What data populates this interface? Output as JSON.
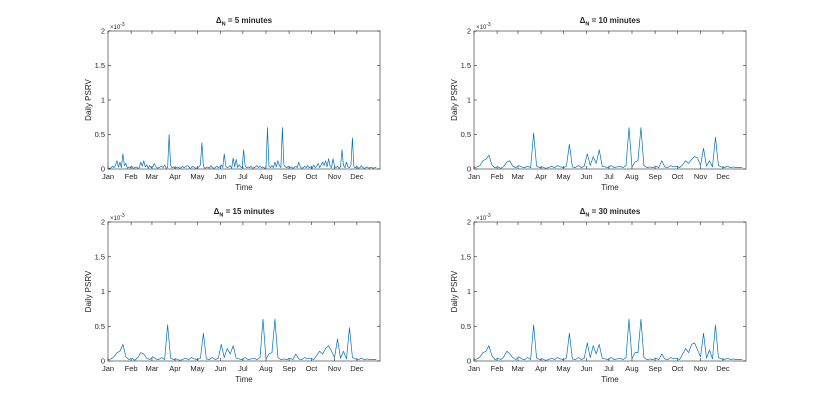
{
  "figure": {
    "y_exponent_label": "×10",
    "y_exponent_power": "-3"
  },
  "chart_data": [
    {
      "type": "line",
      "title": "Δ",
      "title_subscript": "N",
      "title_suffix": " = 5 minutes",
      "xlabel": "Time",
      "ylabel": "Daily PSRV",
      "x_tick_labels": [
        "Jan",
        "Feb",
        "Mar",
        "Apr",
        "May",
        "Jun",
        "Jul",
        "Aug",
        "Sep",
        "Oct",
        "Nov",
        "Dec"
      ],
      "x_tick_days": [
        0,
        31,
        59,
        90,
        120,
        151,
        181,
        212,
        243,
        273,
        304,
        334
      ],
      "xlim": [
        0,
        365
      ],
      "y_ticks": [
        0,
        0.5,
        1,
        1.5,
        2
      ],
      "y_tick_labels": [
        "0",
        "0.5",
        "1",
        "1.5",
        "2"
      ],
      "ylim": [
        0,
        2
      ],
      "series": [
        {
          "color": "#0072bd",
          "x": [
            0,
            3,
            6,
            8,
            10,
            12,
            14,
            16,
            18,
            20,
            22,
            24,
            26,
            28,
            30,
            32,
            34,
            36,
            38,
            40,
            42,
            44,
            46,
            48,
            50,
            52,
            54,
            56,
            58,
            60,
            62,
            64,
            66,
            68,
            70,
            72,
            74,
            76,
            78,
            80,
            82,
            84,
            86,
            88,
            90,
            92,
            94,
            96,
            98,
            100,
            102,
            104,
            106,
            108,
            110,
            112,
            114,
            116,
            118,
            120,
            122,
            124,
            126,
            128,
            130,
            132,
            134,
            136,
            138,
            140,
            142,
            144,
            146,
            148,
            150,
            152,
            154,
            156,
            158,
            160,
            162,
            164,
            166,
            168,
            170,
            172,
            174,
            176,
            178,
            180,
            182,
            184,
            186,
            188,
            190,
            192,
            194,
            196,
            198,
            200,
            202,
            204,
            206,
            208,
            210,
            212,
            214,
            216,
            218,
            220,
            222,
            224,
            226,
            228,
            230,
            232,
            234,
            236,
            238,
            240,
            242,
            244,
            246,
            248,
            250,
            252,
            254,
            256,
            258,
            260,
            262,
            264,
            266,
            268,
            270,
            272,
            274,
            276,
            278,
            280,
            282,
            284,
            286,
            288,
            290,
            292,
            294,
            296,
            298,
            300,
            302,
            304,
            306,
            308,
            310,
            312,
            314,
            316,
            318,
            320,
            322,
            324,
            326,
            328,
            330,
            332,
            334,
            336,
            338,
            340,
            342,
            344,
            346,
            348,
            350,
            352,
            354,
            356,
            358,
            360
          ],
          "y": [
            0.01,
            0.01,
            0.04,
            0.02,
            0.05,
            0.12,
            0.03,
            0.1,
            0.02,
            0.22,
            0.05,
            0.08,
            0.01,
            0.03,
            0.02,
            0.04,
            0.01,
            0.02,
            0.03,
            0.01,
            0.02,
            0.1,
            0.04,
            0.12,
            0.03,
            0.06,
            0.01,
            0.05,
            0.02,
            0.03,
            0.08,
            0.04,
            0.01,
            0.02,
            0.03,
            0.04,
            0.02,
            0.06,
            0.01,
            0.02,
            0.5,
            0.05,
            0.02,
            0.03,
            0.01,
            0.02,
            0.03,
            0.01,
            0.02,
            0.04,
            0.02,
            0.03,
            0.05,
            0.04,
            0.01,
            0.02,
            0.04,
            0.02,
            0.01,
            0.02,
            0.03,
            0.06,
            0.38,
            0.04,
            0.01,
            0.02,
            0.03,
            0.01,
            0.05,
            0.02,
            0.01,
            0.02,
            0.04,
            0.02,
            0.03,
            0.06,
            0.02,
            0.22,
            0.04,
            0.02,
            0.03,
            0.05,
            0.01,
            0.16,
            0.03,
            0.14,
            0.02,
            0.06,
            0.03,
            0.02,
            0.28,
            0.05,
            0.02,
            0.03,
            0.02,
            0.04,
            0.01,
            0.02,
            0.03,
            0.05,
            0.02,
            0.04,
            0.02,
            0.03,
            0.01,
            0.02,
            0.6,
            0.04,
            0.02,
            0.05,
            0.02,
            0.1,
            0.03,
            0.12,
            0.05,
            0.02,
            0.6,
            0.06,
            0.03,
            0.02,
            0.04,
            0.02,
            0.03,
            0.01,
            0.02,
            0.04,
            0.02,
            0.1,
            0.03,
            0.01,
            0.02,
            0.04,
            0.02,
            0.05,
            0.02,
            0.03,
            0.01,
            0.06,
            0.02,
            0.04,
            0.08,
            0.02,
            0.06,
            0.1,
            0.05,
            0.12,
            0.03,
            0.15,
            0.04,
            0.02,
            0.15,
            0.03,
            0.02,
            0.04,
            0.01,
            0.03,
            0.28,
            0.05,
            0.02,
            0.1,
            0.03,
            0.02,
            0.06,
            0.45,
            0.03,
            0.02,
            0.04,
            0.01,
            0.02,
            0.05,
            0.02,
            0.01,
            0.02,
            0.03,
            0.01,
            0.02,
            0.02,
            0.01,
            0.02,
            0.02
          ]
        }
      ]
    },
    {
      "type": "line",
      "title": "Δ",
      "title_subscript": "N",
      "title_suffix": " = 10 minutes",
      "xlabel": "Time",
      "ylabel": "Daily PSRV",
      "x_tick_labels": [
        "Jan",
        "Feb",
        "Mar",
        "Apr",
        "May",
        "Jun",
        "Jul",
        "Aug",
        "Sep",
        "Oct",
        "Nov",
        "Dec"
      ],
      "x_tick_days": [
        0,
        31,
        59,
        90,
        120,
        151,
        181,
        212,
        243,
        273,
        304,
        334
      ],
      "xlim": [
        0,
        365
      ],
      "y_ticks": [
        0,
        0.5,
        1,
        1.5,
        2
      ],
      "y_tick_labels": [
        "0",
        "0.5",
        "1",
        "1.5",
        "2"
      ],
      "ylim": [
        0,
        2
      ],
      "series": [
        {
          "color": "#0072bd",
          "x": [
            0,
            4,
            8,
            12,
            16,
            20,
            24,
            28,
            32,
            36,
            40,
            44,
            48,
            52,
            56,
            60,
            64,
            68,
            72,
            76,
            80,
            84,
            88,
            92,
            96,
            100,
            104,
            108,
            112,
            116,
            120,
            124,
            128,
            132,
            136,
            140,
            144,
            148,
            152,
            156,
            160,
            164,
            168,
            172,
            176,
            180,
            184,
            188,
            192,
            196,
            200,
            204,
            208,
            212,
            216,
            220,
            224,
            228,
            232,
            236,
            240,
            244,
            248,
            252,
            256,
            260,
            264,
            268,
            272,
            276,
            280,
            284,
            288,
            292,
            296,
            300,
            304,
            308,
            312,
            316,
            320,
            324,
            328,
            332,
            336,
            340,
            344,
            348,
            352,
            356,
            360
          ],
          "y": [
            0.02,
            0.03,
            0.05,
            0.12,
            0.14,
            0.2,
            0.06,
            0.02,
            0.03,
            0.01,
            0.04,
            0.1,
            0.12,
            0.04,
            0.02,
            0.05,
            0.03,
            0.02,
            0.04,
            0.02,
            0.52,
            0.04,
            0.02,
            0.03,
            0.01,
            0.02,
            0.04,
            0.02,
            0.05,
            0.03,
            0.02,
            0.04,
            0.36,
            0.03,
            0.02,
            0.05,
            0.02,
            0.04,
            0.22,
            0.05,
            0.18,
            0.08,
            0.28,
            0.04,
            0.03,
            0.02,
            0.05,
            0.02,
            0.03,
            0.04,
            0.02,
            0.05,
            0.6,
            0.03,
            0.1,
            0.12,
            0.6,
            0.05,
            0.02,
            0.03,
            0.02,
            0.04,
            0.02,
            0.12,
            0.03,
            0.02,
            0.05,
            0.03,
            0.04,
            0.02,
            0.06,
            0.12,
            0.08,
            0.14,
            0.18,
            0.16,
            0.05,
            0.3,
            0.04,
            0.12,
            0.03,
            0.46,
            0.05,
            0.03,
            0.02,
            0.04,
            0.02,
            0.03,
            0.02,
            0.02,
            0.02
          ]
        }
      ]
    },
    {
      "type": "line",
      "title": "Δ",
      "title_subscript": "N",
      "title_suffix": " = 15 minutes",
      "xlabel": "Time",
      "ylabel": "Daily PSRV",
      "x_tick_labels": [
        "Jan",
        "Feb",
        "Mar",
        "Apr",
        "May",
        "Jun",
        "Jul",
        "Aug",
        "Sep",
        "Oct",
        "Nov",
        "Dec"
      ],
      "x_tick_days": [
        0,
        31,
        59,
        90,
        120,
        151,
        181,
        212,
        243,
        273,
        304,
        334
      ],
      "xlim": [
        0,
        365
      ],
      "y_ticks": [
        0,
        0.5,
        1,
        1.5,
        2
      ],
      "y_tick_labels": [
        "0",
        "0.5",
        "1",
        "1.5",
        "2"
      ],
      "ylim": [
        0,
        2
      ],
      "series": [
        {
          "color": "#0072bd",
          "x": [
            0,
            4,
            8,
            12,
            16,
            20,
            24,
            28,
            32,
            36,
            40,
            44,
            48,
            52,
            56,
            60,
            64,
            68,
            72,
            76,
            80,
            84,
            88,
            92,
            96,
            100,
            104,
            108,
            112,
            116,
            120,
            124,
            128,
            132,
            136,
            140,
            144,
            148,
            152,
            156,
            160,
            164,
            168,
            172,
            176,
            180,
            184,
            188,
            192,
            196,
            200,
            204,
            208,
            212,
            216,
            220,
            224,
            228,
            232,
            236,
            240,
            244,
            248,
            252,
            256,
            260,
            264,
            268,
            272,
            276,
            280,
            284,
            288,
            292,
            296,
            300,
            304,
            308,
            312,
            316,
            320,
            324,
            328,
            332,
            336,
            340,
            344,
            348,
            352,
            356,
            360
          ],
          "y": [
            0.02,
            0.03,
            0.06,
            0.12,
            0.14,
            0.24,
            0.06,
            0.02,
            0.04,
            0.01,
            0.05,
            0.12,
            0.1,
            0.04,
            0.02,
            0.06,
            0.03,
            0.02,
            0.05,
            0.02,
            0.52,
            0.04,
            0.02,
            0.03,
            0.01,
            0.02,
            0.04,
            0.02,
            0.05,
            0.03,
            0.02,
            0.04,
            0.4,
            0.03,
            0.02,
            0.05,
            0.02,
            0.04,
            0.24,
            0.05,
            0.18,
            0.1,
            0.22,
            0.04,
            0.03,
            0.02,
            0.05,
            0.02,
            0.03,
            0.04,
            0.02,
            0.05,
            0.6,
            0.03,
            0.1,
            0.12,
            0.6,
            0.05,
            0.02,
            0.03,
            0.02,
            0.04,
            0.02,
            0.1,
            0.03,
            0.02,
            0.05,
            0.03,
            0.04,
            0.02,
            0.08,
            0.14,
            0.1,
            0.18,
            0.22,
            0.14,
            0.05,
            0.32,
            0.04,
            0.14,
            0.03,
            0.48,
            0.05,
            0.03,
            0.02,
            0.04,
            0.02,
            0.03,
            0.02,
            0.02,
            0.02
          ]
        }
      ]
    },
    {
      "type": "line",
      "title": "Δ",
      "title_subscript": "N",
      "title_suffix": " = 30 minutes",
      "xlabel": "Time",
      "ylabel": "Daily PSRV",
      "x_tick_labels": [
        "Jan",
        "Feb",
        "Mar",
        "Apr",
        "May",
        "Jun",
        "Jul",
        "Aug",
        "Sep",
        "Oct",
        "Nov",
        "Dec"
      ],
      "x_tick_days": [
        0,
        31,
        59,
        90,
        120,
        151,
        181,
        212,
        243,
        273,
        304,
        334
      ],
      "xlim": [
        0,
        365
      ],
      "y_ticks": [
        0,
        0.5,
        1,
        1.5,
        2
      ],
      "y_tick_labels": [
        "0",
        "0.5",
        "1",
        "1.5",
        "2"
      ],
      "ylim": [
        0,
        2
      ],
      "series": [
        {
          "color": "#0072bd",
          "x": [
            0,
            4,
            8,
            12,
            16,
            20,
            24,
            28,
            32,
            36,
            40,
            44,
            48,
            52,
            56,
            60,
            64,
            68,
            72,
            76,
            80,
            84,
            88,
            92,
            96,
            100,
            104,
            108,
            112,
            116,
            120,
            124,
            128,
            132,
            136,
            140,
            144,
            148,
            152,
            156,
            160,
            164,
            168,
            172,
            176,
            180,
            184,
            188,
            192,
            196,
            200,
            204,
            208,
            212,
            216,
            220,
            224,
            228,
            232,
            236,
            240,
            244,
            248,
            252,
            256,
            260,
            264,
            268,
            272,
            276,
            280,
            284,
            288,
            292,
            296,
            300,
            304,
            308,
            312,
            316,
            320,
            324,
            328,
            332,
            336,
            340,
            344,
            348,
            352,
            356,
            360
          ],
          "y": [
            0.02,
            0.03,
            0.06,
            0.12,
            0.14,
            0.22,
            0.08,
            0.02,
            0.04,
            0.02,
            0.06,
            0.14,
            0.1,
            0.05,
            0.02,
            0.06,
            0.03,
            0.02,
            0.05,
            0.02,
            0.52,
            0.04,
            0.02,
            0.03,
            0.01,
            0.02,
            0.04,
            0.02,
            0.05,
            0.03,
            0.02,
            0.04,
            0.4,
            0.03,
            0.02,
            0.05,
            0.02,
            0.04,
            0.26,
            0.05,
            0.22,
            0.1,
            0.24,
            0.04,
            0.03,
            0.02,
            0.05,
            0.02,
            0.03,
            0.04,
            0.02,
            0.05,
            0.6,
            0.03,
            0.12,
            0.12,
            0.6,
            0.05,
            0.02,
            0.03,
            0.02,
            0.04,
            0.02,
            0.1,
            0.03,
            0.02,
            0.05,
            0.03,
            0.04,
            0.02,
            0.1,
            0.18,
            0.12,
            0.24,
            0.26,
            0.16,
            0.06,
            0.4,
            0.04,
            0.16,
            0.03,
            0.52,
            0.05,
            0.03,
            0.02,
            0.04,
            0.02,
            0.03,
            0.02,
            0.02,
            0.02
          ]
        }
      ]
    }
  ]
}
